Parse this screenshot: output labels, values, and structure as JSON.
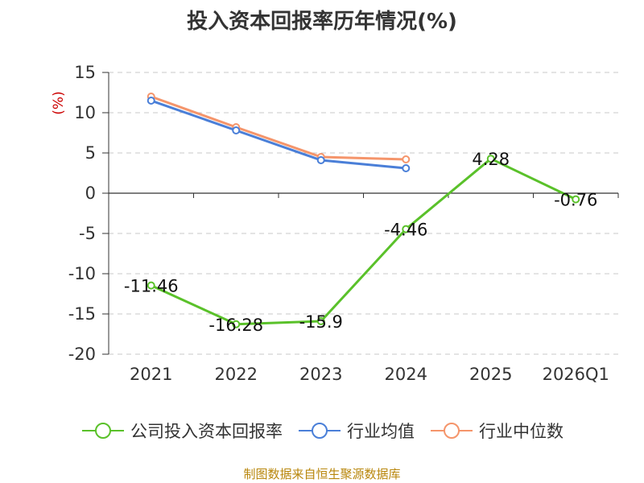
{
  "title": "投入资本回报率历年情况(%)",
  "source": "制图数据来自恒生聚源数据库",
  "chart_data": {
    "type": "line",
    "categories": [
      "2021",
      "2022",
      "2023",
      "2024",
      "2025",
      "2026Q1"
    ],
    "ylabel": "(%)",
    "ylim": [
      -20,
      15
    ],
    "yticks": [
      15,
      10,
      5,
      0,
      -5,
      -10,
      -15,
      -20
    ],
    "grid": true,
    "legend_position": "bottom",
    "series": [
      {
        "name": "公司投入资本回报率",
        "color": "#5ac12a",
        "values": [
          -11.46,
          -16.28,
          -15.9,
          -4.46,
          4.28,
          -0.76
        ],
        "labels": [
          "-11.46",
          "-16.28",
          "-15.9",
          "-4.46",
          "4.28",
          "-0.76"
        ]
      },
      {
        "name": "行业均值",
        "color": "#4a7fd8",
        "values": [
          11.5,
          7.8,
          4.1,
          3.1,
          null,
          null
        ]
      },
      {
        "name": "行业中位数",
        "color": "#f5956b",
        "values": [
          12.0,
          8.2,
          4.5,
          4.2,
          null,
          null
        ]
      }
    ]
  }
}
